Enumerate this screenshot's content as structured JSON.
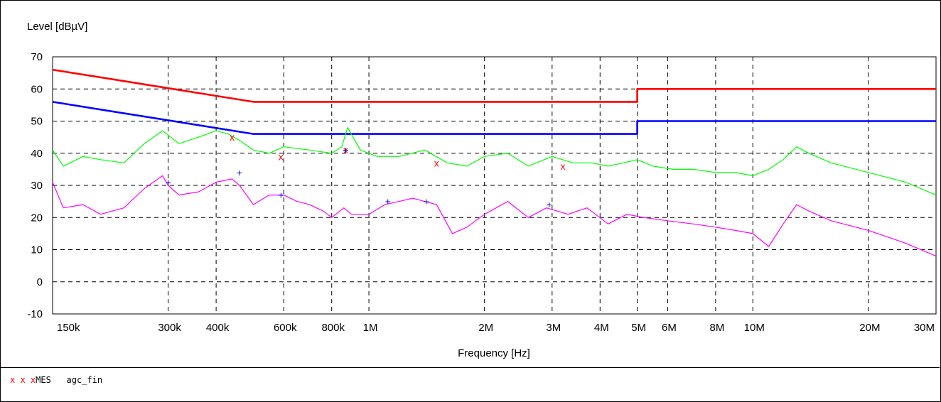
{
  "chart_data": {
    "type": "line",
    "ylabel": "Level [dBµV]",
    "xlabel": "Frequency [Hz]",
    "x_scale": "log",
    "xlim": [
      150000,
      30000000
    ],
    "ylim": [
      -10,
      70
    ],
    "grid": true,
    "y_ticks": [
      70,
      60,
      50,
      40,
      30,
      20,
      10,
      0,
      -10
    ],
    "x_ticks": [
      {
        "value": 150000,
        "label": "150k"
      },
      {
        "value": 300000,
        "label": "300k"
      },
      {
        "value": 400000,
        "label": "400k"
      },
      {
        "value": 600000,
        "label": "600k"
      },
      {
        "value": 800000,
        "label": "800k"
      },
      {
        "value": 1000000,
        "label": "1M"
      },
      {
        "value": 2000000,
        "label": "2M"
      },
      {
        "value": 3000000,
        "label": "3M"
      },
      {
        "value": 4000000,
        "label": "4M"
      },
      {
        "value": 5000000,
        "label": "5M"
      },
      {
        "value": 6000000,
        "label": "6M"
      },
      {
        "value": 8000000,
        "label": "8M"
      },
      {
        "value": 10000000,
        "label": "10M"
      },
      {
        "value": 20000000,
        "label": "20M"
      },
      {
        "value": 30000000,
        "label": "30M"
      }
    ],
    "series": [
      {
        "color": "#ff0000",
        "x": [
          150000,
          500000,
          500000,
          5000000,
          5000000,
          30000000
        ],
        "y": [
          66,
          56,
          56,
          56,
          60,
          60
        ]
      },
      {
        "color": "#0000ff",
        "x": [
          150000,
          500000,
          500000,
          5000000,
          5000000,
          30000000
        ],
        "y": [
          56,
          46,
          46,
          46,
          50,
          50
        ]
      },
      {
        "color": "#00ff00",
        "x": [
          150000,
          160000,
          180000,
          200000,
          230000,
          260000,
          290000,
          320000,
          360000,
          400000,
          430000,
          460000,
          500000,
          550000,
          600000,
          700000,
          800000,
          850000,
          880000,
          950000,
          1050000,
          1200000,
          1400000,
          1600000,
          1800000,
          2000000,
          2300000,
          2600000,
          3000000,
          3400000,
          3800000,
          4200000,
          4600000,
          5000000,
          5500000,
          6200000,
          7000000,
          8000000,
          9000000,
          10000000,
          11000000,
          12000000,
          13000000,
          14000000,
          16000000,
          20000000,
          25000000,
          30000000
        ],
        "y": [
          41,
          36,
          39,
          38,
          37,
          43,
          47,
          43,
          45,
          47,
          46,
          44,
          41,
          40,
          42,
          41,
          40,
          42,
          48,
          41,
          39,
          39,
          41,
          37,
          36,
          39,
          40,
          36,
          39,
          37,
          37,
          36,
          37,
          38,
          36,
          35,
          35,
          34,
          34,
          33,
          35,
          38,
          42,
          40,
          37,
          34,
          31,
          27
        ]
      },
      {
        "color": "#ff00ff",
        "x": [
          150000,
          160000,
          180000,
          200000,
          230000,
          260000,
          290000,
          300000,
          320000,
          360000,
          400000,
          440000,
          460000,
          480000,
          500000,
          550000,
          600000,
          650000,
          700000,
          760000,
          800000,
          860000,
          900000,
          1000000,
          1100000,
          1200000,
          1300000,
          1500000,
          1650000,
          1800000,
          2000000,
          2300000,
          2600000,
          2900000,
          3300000,
          3700000,
          4200000,
          4700000,
          5200000,
          6000000,
          7000000,
          8000000,
          9000000,
          10000000,
          11000000,
          12000000,
          13000000,
          14000000,
          16000000,
          20000000,
          25000000,
          30000000
        ],
        "y": [
          31,
          23,
          24,
          21,
          23,
          29,
          33,
          30,
          27,
          28,
          31,
          32,
          30,
          27,
          24,
          27,
          27,
          25,
          24,
          22,
          20,
          23,
          21,
          21,
          24,
          25,
          26,
          24,
          15,
          17,
          21,
          25,
          20,
          23,
          21,
          23,
          18,
          21,
          20,
          19,
          18,
          17,
          16,
          15,
          11,
          18,
          24,
          22,
          19,
          16,
          12,
          8
        ]
      }
    ],
    "markers_x": {
      "symbol": "x",
      "color": "#ff0000",
      "points": [
        [
          440000,
          45
        ],
        [
          590000,
          39
        ],
        [
          870000,
          41
        ],
        [
          1500000,
          37
        ],
        [
          3200000,
          36
        ]
      ]
    },
    "markers_plus": {
      "symbol": "+",
      "color": "#0000ff",
      "points": [
        [
          300000,
          31
        ],
        [
          460000,
          34
        ],
        [
          590000,
          27
        ],
        [
          870000,
          41
        ],
        [
          1120000,
          25
        ],
        [
          1410000,
          25
        ],
        [
          2950000,
          24
        ]
      ]
    }
  },
  "legend": {
    "markers": "x x x",
    "label": "MES",
    "name": "agc_fin"
  }
}
